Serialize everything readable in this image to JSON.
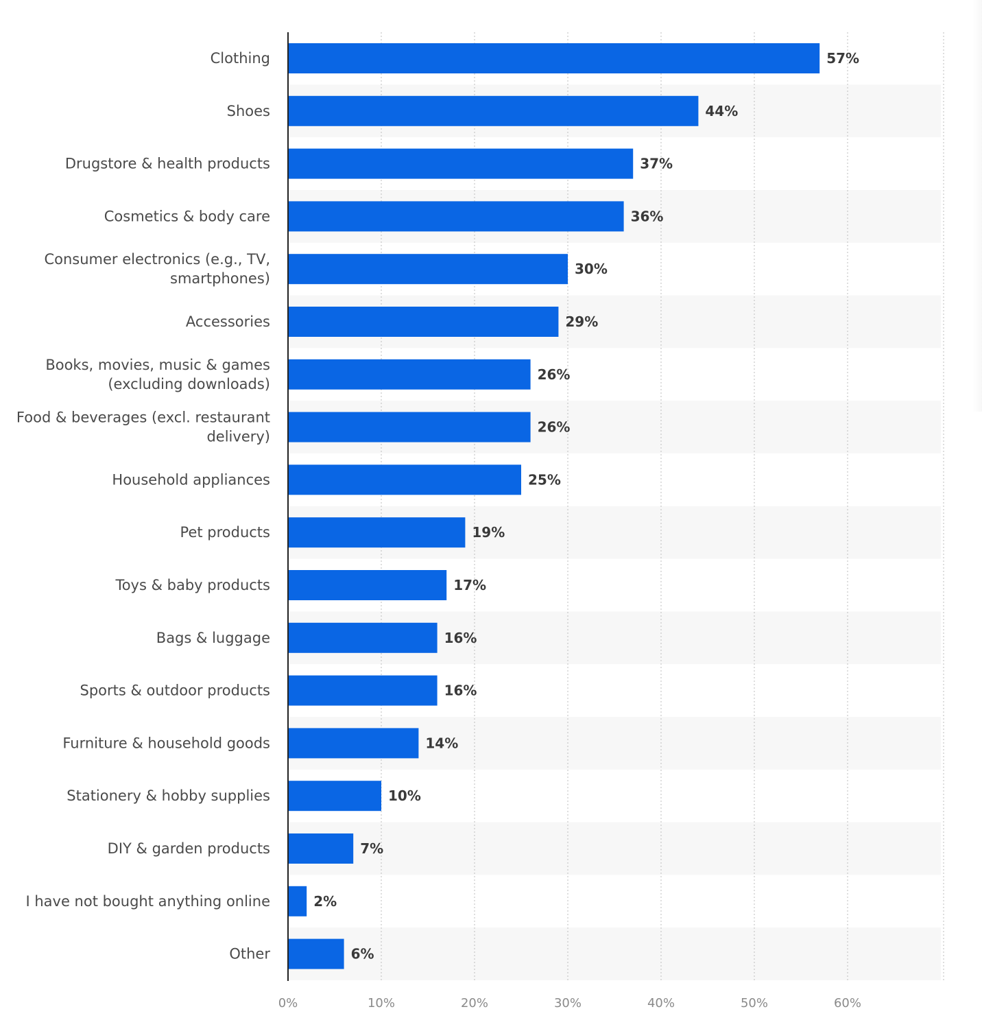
{
  "chart_data": {
    "type": "bar",
    "orientation": "horizontal",
    "categories": [
      "Clothing",
      "Shoes",
      "Drugstore & health products",
      "Cosmetics & body care",
      "Consumer electronics (e.g., TV, smartphones)",
      "Accessories",
      "Books, movies, music & games (excluding downloads)",
      "Food & beverages (excl. restaurant delivery)",
      "Household appliances",
      "Pet products",
      "Toys & baby products",
      "Bags & luggage",
      "Sports & outdoor products",
      "Furniture & household goods",
      "Stationery & hobby supplies",
      "DIY & garden products",
      "I have not bought anything online",
      "Other"
    ],
    "category_lines": [
      [
        "Clothing"
      ],
      [
        "Shoes"
      ],
      [
        "Drugstore & health products"
      ],
      [
        "Cosmetics & body care"
      ],
      [
        "Consumer electronics (e.g., TV,",
        "smartphones)"
      ],
      [
        "Accessories"
      ],
      [
        "Books, movies, music & games",
        "(excluding downloads)"
      ],
      [
        "Food & beverages (excl. restaurant",
        "delivery)"
      ],
      [
        "Household appliances"
      ],
      [
        "Pet products"
      ],
      [
        "Toys & baby products"
      ],
      [
        "Bags & luggage"
      ],
      [
        "Sports & outdoor products"
      ],
      [
        "Furniture & household goods"
      ],
      [
        "Stationery & hobby supplies"
      ],
      [
        "DIY & garden products"
      ],
      [
        "I have not bought anything online"
      ],
      [
        "Other"
      ]
    ],
    "values": [
      57,
      44,
      37,
      36,
      30,
      29,
      26,
      26,
      25,
      19,
      17,
      16,
      16,
      14,
      10,
      7,
      2,
      6
    ],
    "value_labels": [
      "57%",
      "44%",
      "37%",
      "36%",
      "30%",
      "29%",
      "26%",
      "26%",
      "25%",
      "19%",
      "17%",
      "16%",
      "16%",
      "14%",
      "10%",
      "7%",
      "2%",
      "6%"
    ],
    "x_ticks": [
      0,
      10,
      20,
      30,
      40,
      50,
      60
    ],
    "x_tick_labels": [
      "0%",
      "10%",
      "20%",
      "30%",
      "40%",
      "50%",
      "60%"
    ],
    "xlim": [
      0,
      70
    ],
    "grid": true,
    "bar_color": "#0a66e4",
    "stripe_color": "#f7f7f7",
    "title": "",
    "xlabel": "",
    "ylabel": ""
  }
}
